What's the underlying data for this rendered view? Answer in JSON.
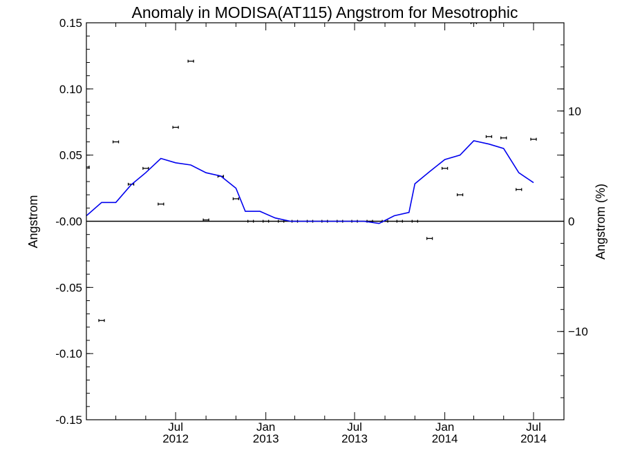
{
  "chart_data": {
    "type": "scatter",
    "title": "Anomaly in MODISA(AT115) Angstrom for Mesotrophic",
    "ylabel": "Angstrom",
    "y2label": "Angstrom (%)",
    "xlim": [
      "2012-01-01",
      "2014-09-01"
    ],
    "ylim": [
      -0.15,
      0.15
    ],
    "y2lim": [
      -18,
      18
    ],
    "y_ticks": [
      "0.15",
      "0.10",
      "0.05",
      "-0.00",
      "-0.05",
      "-0.10",
      "-0.15"
    ],
    "y_tick_values": [
      0.15,
      0.1,
      0.05,
      0.0,
      -0.05,
      -0.1,
      -0.15
    ],
    "y2_ticks": [
      "10",
      "0",
      "−10"
    ],
    "y2_tick_values": [
      10,
      0,
      -10
    ],
    "x_ticks": [
      {
        "month": "Jul",
        "year": "2012",
        "date": "2012-07-01"
      },
      {
        "month": "Jan",
        "year": "2013",
        "date": "2013-01-01"
      },
      {
        "month": "Jul",
        "year": "2013",
        "date": "2013-07-01"
      },
      {
        "month": "Jan",
        "year": "2014",
        "date": "2014-01-01"
      },
      {
        "month": "Jul",
        "year": "2014",
        "date": "2014-07-01"
      }
    ],
    "zero_line": true,
    "series": [
      {
        "style": "points-with-error-bars",
        "color": "#000000",
        "points": [
          {
            "x": "2012-01-01",
            "y": 0.041
          },
          {
            "x": "2012-02-01",
            "y": -0.075
          },
          {
            "x": "2012-03-01",
            "y": 0.06
          },
          {
            "x": "2012-04-01",
            "y": 0.028
          },
          {
            "x": "2012-05-01",
            "y": 0.04
          },
          {
            "x": "2012-06-01",
            "y": 0.013
          },
          {
            "x": "2012-07-01",
            "y": 0.071
          },
          {
            "x": "2012-08-01",
            "y": 0.121
          },
          {
            "x": "2012-09-01",
            "y": 0.001
          },
          {
            "x": "2012-10-01",
            "y": 0.034
          },
          {
            "x": "2012-11-01",
            "y": 0.017
          },
          {
            "x": "2012-12-01",
            "y": 0.0
          },
          {
            "x": "2013-01-01",
            "y": 0.0
          },
          {
            "x": "2013-02-01",
            "y": 0.0
          },
          {
            "x": "2013-03-01",
            "y": 0.0
          },
          {
            "x": "2013-04-01",
            "y": 0.0
          },
          {
            "x": "2013-05-01",
            "y": 0.0
          },
          {
            "x": "2013-06-01",
            "y": 0.0
          },
          {
            "x": "2013-07-01",
            "y": 0.0
          },
          {
            "x": "2013-08-01",
            "y": 0.0
          },
          {
            "x": "2013-09-01",
            "y": 0.0
          },
          {
            "x": "2013-10-01",
            "y": 0.0
          },
          {
            "x": "2013-11-01",
            "y": 0.0
          },
          {
            "x": "2013-12-01",
            "y": -0.013
          },
          {
            "x": "2014-01-01",
            "y": 0.04
          },
          {
            "x": "2014-02-01",
            "y": 0.02
          },
          {
            "x": "2014-03-01",
            "y": 0.15
          },
          {
            "x": "2014-04-01",
            "y": 0.064
          },
          {
            "x": "2014-05-01",
            "y": 0.063
          },
          {
            "x": "2014-06-01",
            "y": 0.024
          },
          {
            "x": "2014-07-01",
            "y": 0.062
          }
        ]
      },
      {
        "style": "line",
        "color": "#0000ee",
        "axis": "right",
        "points": [
          {
            "x": "2012-01-01",
            "y": 0.5
          },
          {
            "x": "2012-02-01",
            "y": 1.7
          },
          {
            "x": "2012-03-01",
            "y": 1.7
          },
          {
            "x": "2012-04-01",
            "y": 3.3
          },
          {
            "x": "2012-05-01",
            "y": 4.4
          },
          {
            "x": "2012-06-01",
            "y": 5.7
          },
          {
            "x": "2012-07-01",
            "y": 5.3
          },
          {
            "x": "2012-08-01",
            "y": 5.1
          },
          {
            "x": "2012-09-01",
            "y": 4.4
          },
          {
            "x": "2012-10-01",
            "y": 4.1
          },
          {
            "x": "2012-11-01",
            "y": 3.0
          },
          {
            "x": "2012-11-20",
            "y": 0.9
          },
          {
            "x": "2012-12-20",
            "y": 0.9
          },
          {
            "x": "2013-01-20",
            "y": 0.3
          },
          {
            "x": "2013-02-20",
            "y": 0.0
          },
          {
            "x": "2013-03-20",
            "y": 0.0
          },
          {
            "x": "2013-04-20",
            "y": 0.0
          },
          {
            "x": "2013-05-20",
            "y": 0.0
          },
          {
            "x": "2013-06-20",
            "y": 0.0
          },
          {
            "x": "2013-07-20",
            "y": 0.0
          },
          {
            "x": "2013-08-20",
            "y": -0.2
          },
          {
            "x": "2013-09-20",
            "y": 0.5
          },
          {
            "x": "2013-10-20",
            "y": 0.8
          },
          {
            "x": "2013-11-01",
            "y": 3.4
          },
          {
            "x": "2013-12-01",
            "y": 4.5
          },
          {
            "x": "2014-01-01",
            "y": 5.6
          },
          {
            "x": "2014-02-01",
            "y": 6.0
          },
          {
            "x": "2014-03-01",
            "y": 7.3
          },
          {
            "x": "2014-04-01",
            "y": 7.0
          },
          {
            "x": "2014-05-01",
            "y": 6.6
          },
          {
            "x": "2014-06-01",
            "y": 4.4
          },
          {
            "x": "2014-07-01",
            "y": 3.5
          }
        ]
      }
    ]
  }
}
